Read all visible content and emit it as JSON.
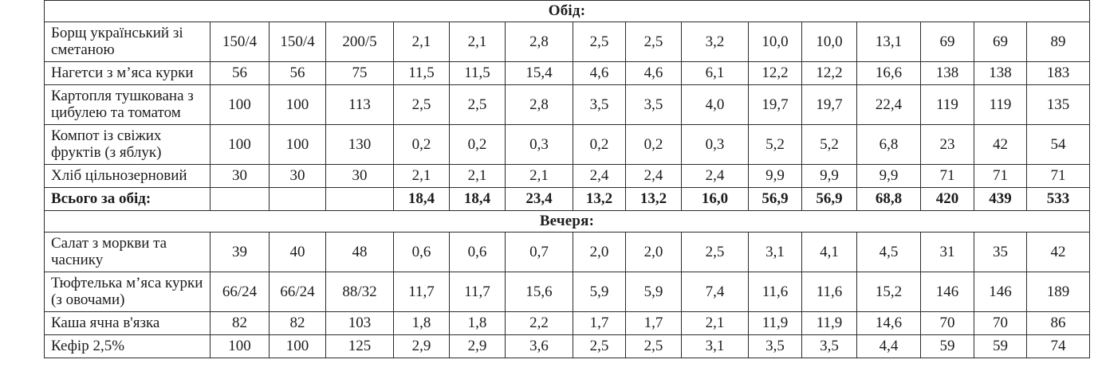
{
  "table": {
    "columns_count": 16,
    "text_color": "#1c1c1c",
    "border_color": "#2b2b2b",
    "background_color": "#ffffff",
    "sections": [
      {
        "header": "Обід:",
        "rows": [
          {
            "name": "Борщ український зі сметаною",
            "bold": false,
            "values": [
              "150/4",
              "150/4",
              "200/5",
              "2,1",
              "2,1",
              "2,8",
              "2,5",
              "2,5",
              "3,2",
              "10,0",
              "10,0",
              "13,1",
              "69",
              "69",
              "89"
            ]
          },
          {
            "name": "Нагетси з м’яса курки",
            "bold": false,
            "values": [
              "56",
              "56",
              "75",
              "11,5",
              "11,5",
              "15,4",
              "4,6",
              "4,6",
              "6,1",
              "12,2",
              "12,2",
              "16,6",
              "138",
              "138",
              "183"
            ]
          },
          {
            "name": "Картопля тушкована з цибулею та томатом",
            "bold": false,
            "values": [
              "100",
              "100",
              "113",
              "2,5",
              "2,5",
              "2,8",
              "3,5",
              "3,5",
              "4,0",
              "19,7",
              "19,7",
              "22,4",
              "119",
              "119",
              "135"
            ]
          },
          {
            "name": "Компот із свіжих фруктів (з яблук)",
            "bold": false,
            "values": [
              "100",
              "100",
              "130",
              "0,2",
              "0,2",
              "0,3",
              "0,2",
              "0,2",
              "0,3",
              "5,2",
              "5,2",
              "6,8",
              "23",
              "42",
              "54"
            ]
          },
          {
            "name": "Хліб цільнозерновий",
            "bold": false,
            "values": [
              "30",
              "30",
              "30",
              "2,1",
              "2,1",
              "2,1",
              "2,4",
              "2,4",
              "2,4",
              "9,9",
              "9,9",
              "9,9",
              "71",
              "71",
              "71"
            ]
          },
          {
            "name": "Всього за обід:",
            "bold": true,
            "values": [
              "",
              "",
              "",
              "18,4",
              "18,4",
              "23,4",
              "13,2",
              "13,2",
              "16,0",
              "56,9",
              "56,9",
              "68,8",
              "420",
              "439",
              "533"
            ]
          }
        ]
      },
      {
        "header": "Вечеря:",
        "rows": [
          {
            "name": "Салат з моркви та часнику",
            "bold": false,
            "values": [
              "39",
              "40",
              "48",
              "0,6",
              "0,6",
              "0,7",
              "2,0",
              "2,0",
              "2,5",
              "3,1",
              "4,1",
              "4,5",
              "31",
              "35",
              "42"
            ]
          },
          {
            "name": "Тюфтелька м’яса курки (з овочами)",
            "bold": false,
            "values": [
              "66/24",
              "66/24",
              "88/32",
              "11,7",
              "11,7",
              "15,6",
              "5,9",
              "5,9",
              "7,4",
              "11,6",
              "11,6",
              "15,2",
              "146",
              "146",
              "189"
            ]
          },
          {
            "name": "Каша ячна в'язка",
            "bold": false,
            "values": [
              "82",
              "82",
              "103",
              "1,8",
              "1,8",
              "2,2",
              "1,7",
              "1,7",
              "2,1",
              "11,9",
              "11,9",
              "14,6",
              "70",
              "70",
              "86"
            ]
          },
          {
            "name": "Кефір 2,5%",
            "bold": false,
            "values": [
              "100",
              "100",
              "125",
              "2,9",
              "2,9",
              "3,6",
              "2,5",
              "2,5",
              "3,1",
              "3,5",
              "3,5",
              "4,4",
              "59",
              "59",
              "74"
            ]
          }
        ]
      }
    ]
  }
}
